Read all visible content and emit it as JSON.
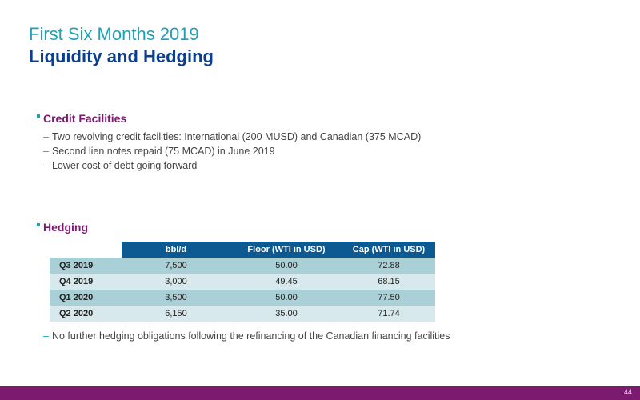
{
  "header": {
    "supertitle": "First Six Months 2019",
    "title": "Liquidity and Hedging"
  },
  "credit": {
    "heading": "Credit Facilities",
    "bullets": [
      "Two revolving credit facilities: International (200 MUSD) and Canadian (375 MCAD)",
      "Second lien notes repaid (75 MCAD) in June 2019",
      "Lower cost of debt going forward"
    ]
  },
  "hedging": {
    "heading": "Hedging",
    "columns": [
      "bbl/d",
      "Floor (WTI in USD)",
      "Cap (WTI in USD)"
    ],
    "rows": [
      {
        "label": "Q3 2019",
        "bbl": "7,500",
        "floor": "50.00",
        "cap": "72.88"
      },
      {
        "label": "Q4 2019",
        "bbl": "3,000",
        "floor": "49.45",
        "cap": "68.15"
      },
      {
        "label": "Q1 2020",
        "bbl": "3,500",
        "floor": "50.00",
        "cap": "77.50"
      },
      {
        "label": "Q2 2020",
        "bbl": "6,150",
        "floor": "35.00",
        "cap": "71.74"
      }
    ],
    "note": "No further hedging obligations following the refinancing of the Canadian financing facilities"
  },
  "footer": {
    "page_number": "44"
  },
  "colors": {
    "accent_teal": "#1fa0b4",
    "title_blue": "#0b3e8c",
    "heading_purple": "#7b1a6e",
    "table_header": "#0d5a92"
  }
}
